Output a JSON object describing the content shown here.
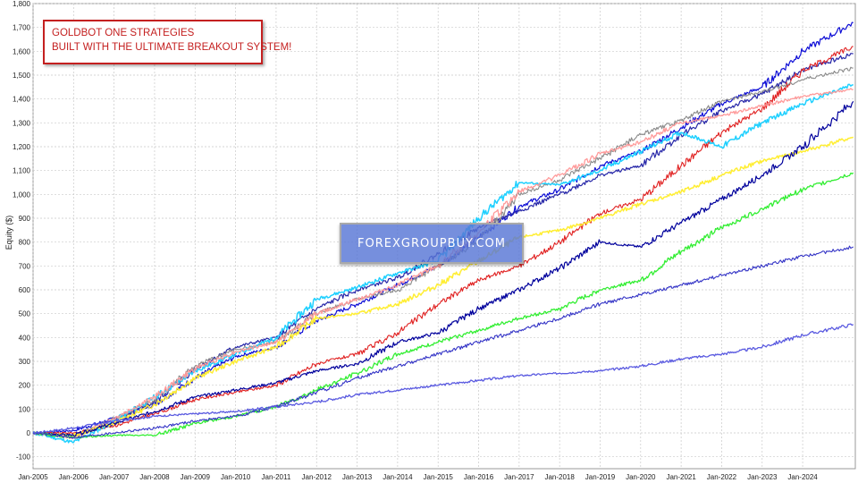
{
  "headline": {
    "line1": "GOLDBOT ONE STRATEGIES",
    "line2": "BUILT WITH THE ULTIMATE BREAKOUT SYSTEM!"
  },
  "watermark": "FOREXGROUPBUY.COM",
  "chart_data": {
    "type": "line",
    "title": "",
    "xlabel": "",
    "ylabel": "Equity ($)",
    "ylim": [
      -150,
      1800
    ],
    "grid": true,
    "yticks": [
      "-100",
      "0",
      "100",
      "200",
      "300",
      "400",
      "500",
      "600",
      "700",
      "800",
      "900",
      "1,000",
      "1,100",
      "1,200",
      "1,300",
      "1,400",
      "1,500",
      "1,600",
      "1,700",
      "1,800"
    ],
    "yticks_values": [
      -100,
      0,
      100,
      200,
      300,
      400,
      500,
      600,
      700,
      800,
      900,
      1000,
      1100,
      1200,
      1300,
      1400,
      1500,
      1600,
      1700,
      1800
    ],
    "xticks": [
      "Jan-2005",
      "Jan-2006",
      "Jan-2007",
      "Jan-2008",
      "Jan-2009",
      "Jan-2010",
      "Jan-2011",
      "Jan-2012",
      "Jan-2013",
      "Jan-2014",
      "Jan-2015",
      "Jan-2016",
      "Jan-2017",
      "Jan-2018",
      "Jan-2019",
      "Jan-2020",
      "Jan-2021",
      "Jan-2022",
      "Jan-2023",
      "Jan-2024"
    ],
    "xticks_values": [
      2005,
      2006,
      2007,
      2008,
      2009,
      2010,
      2011,
      2012,
      2013,
      2014,
      2015,
      2016,
      2017,
      2018,
      2019,
      2020,
      2021,
      2022,
      2023,
      2024
    ],
    "xlim": [
      2005,
      2025.3
    ],
    "series": [
      {
        "color": "#0d0dd6",
        "width": 1.2,
        "points": [
          [
            2005,
            0
          ],
          [
            2006,
            10
          ],
          [
            2007,
            60
          ],
          [
            2008,
            120
          ],
          [
            2009,
            230
          ],
          [
            2010,
            320
          ],
          [
            2011,
            360
          ],
          [
            2012,
            470
          ],
          [
            2013,
            540
          ],
          [
            2014,
            620
          ],
          [
            2015,
            700
          ],
          [
            2016,
            820
          ],
          [
            2017,
            950
          ],
          [
            2018,
            1020
          ],
          [
            2019,
            1120
          ],
          [
            2020,
            1180
          ],
          [
            2021,
            1280
          ],
          [
            2022,
            1380
          ],
          [
            2023,
            1450
          ],
          [
            2024,
            1600
          ],
          [
            2025.25,
            1720
          ]
        ]
      },
      {
        "color": "#2727a8",
        "width": 1.2,
        "points": [
          [
            2005,
            0
          ],
          [
            2006,
            -10
          ],
          [
            2007,
            40
          ],
          [
            2008,
            130
          ],
          [
            2009,
            270
          ],
          [
            2010,
            360
          ],
          [
            2011,
            400
          ],
          [
            2012,
            520
          ],
          [
            2013,
            600
          ],
          [
            2014,
            650
          ],
          [
            2015,
            750
          ],
          [
            2016,
            860
          ],
          [
            2017,
            930
          ],
          [
            2018,
            1000
          ],
          [
            2019,
            1080
          ],
          [
            2020,
            1120
          ],
          [
            2021,
            1250
          ],
          [
            2022,
            1350
          ],
          [
            2023,
            1420
          ],
          [
            2024,
            1520
          ],
          [
            2025.25,
            1590
          ]
        ]
      },
      {
        "color": "#e02020",
        "width": 1.1,
        "points": [
          [
            2005,
            0
          ],
          [
            2006,
            0
          ],
          [
            2007,
            30
          ],
          [
            2008,
            80
          ],
          [
            2009,
            140
          ],
          [
            2010,
            170
          ],
          [
            2011,
            200
          ],
          [
            2012,
            290
          ],
          [
            2013,
            330
          ],
          [
            2014,
            420
          ],
          [
            2015,
            540
          ],
          [
            2016,
            640
          ],
          [
            2017,
            700
          ],
          [
            2018,
            800
          ],
          [
            2019,
            920
          ],
          [
            2020,
            980
          ],
          [
            2021,
            1120
          ],
          [
            2022,
            1260
          ],
          [
            2023,
            1360
          ],
          [
            2024,
            1520
          ],
          [
            2025.25,
            1620
          ]
        ]
      },
      {
        "color": "#8a8a8a",
        "width": 1.1,
        "points": [
          [
            2005,
            0
          ],
          [
            2006,
            -20
          ],
          [
            2007,
            60
          ],
          [
            2008,
            140
          ],
          [
            2009,
            280
          ],
          [
            2010,
            350
          ],
          [
            2011,
            380
          ],
          [
            2012,
            500
          ],
          [
            2013,
            560
          ],
          [
            2014,
            600
          ],
          [
            2015,
            700
          ],
          [
            2016,
            800
          ],
          [
            2017,
            1000
          ],
          [
            2018,
            1060
          ],
          [
            2019,
            1150
          ],
          [
            2020,
            1250
          ],
          [
            2021,
            1310
          ],
          [
            2022,
            1390
          ],
          [
            2023,
            1430
          ],
          [
            2024,
            1480
          ],
          [
            2025.25,
            1530
          ]
        ]
      },
      {
        "color": "#1fd0ff",
        "width": 1.5,
        "points": [
          [
            2005,
            0
          ],
          [
            2006,
            -40
          ],
          [
            2007,
            50
          ],
          [
            2008,
            150
          ],
          [
            2009,
            260
          ],
          [
            2010,
            330
          ],
          [
            2011,
            400
          ],
          [
            2012,
            560
          ],
          [
            2013,
            610
          ],
          [
            2014,
            670
          ],
          [
            2015,
            720
          ],
          [
            2016,
            900
          ],
          [
            2017,
            1050
          ],
          [
            2018,
            1040
          ],
          [
            2019,
            1100
          ],
          [
            2020,
            1180
          ],
          [
            2021,
            1260
          ],
          [
            2022,
            1200
          ],
          [
            2023,
            1300
          ],
          [
            2024,
            1380
          ],
          [
            2025.25,
            1460
          ]
        ]
      },
      {
        "color": "#ff9a9a",
        "width": 1.3,
        "points": [
          [
            2005,
            0
          ],
          [
            2006,
            -20
          ],
          [
            2007,
            60
          ],
          [
            2008,
            150
          ],
          [
            2009,
            270
          ],
          [
            2010,
            340
          ],
          [
            2011,
            380
          ],
          [
            2012,
            500
          ],
          [
            2013,
            560
          ],
          [
            2014,
            620
          ],
          [
            2015,
            700
          ],
          [
            2016,
            840
          ],
          [
            2017,
            1010
          ],
          [
            2018,
            1080
          ],
          [
            2019,
            1170
          ],
          [
            2020,
            1220
          ],
          [
            2021,
            1300
          ],
          [
            2022,
            1330
          ],
          [
            2023,
            1370
          ],
          [
            2024,
            1410
          ],
          [
            2025.25,
            1440
          ]
        ]
      },
      {
        "color": "#ffee33",
        "width": 1.5,
        "points": [
          [
            2005,
            0
          ],
          [
            2006,
            -10
          ],
          [
            2007,
            40
          ],
          [
            2008,
            120
          ],
          [
            2009,
            230
          ],
          [
            2010,
            300
          ],
          [
            2011,
            360
          ],
          [
            2012,
            480
          ],
          [
            2013,
            500
          ],
          [
            2014,
            540
          ],
          [
            2015,
            620
          ],
          [
            2016,
            720
          ],
          [
            2017,
            820
          ],
          [
            2018,
            850
          ],
          [
            2019,
            900
          ],
          [
            2020,
            960
          ],
          [
            2021,
            1010
          ],
          [
            2022,
            1080
          ],
          [
            2023,
            1140
          ],
          [
            2024,
            1180
          ],
          [
            2025.25,
            1240
          ]
        ]
      },
      {
        "color": "#00009c",
        "width": 1.2,
        "points": [
          [
            2005,
            0
          ],
          [
            2006,
            -10
          ],
          [
            2007,
            40
          ],
          [
            2008,
            90
          ],
          [
            2009,
            150
          ],
          [
            2010,
            180
          ],
          [
            2011,
            210
          ],
          [
            2012,
            260
          ],
          [
            2013,
            290
          ],
          [
            2014,
            380
          ],
          [
            2015,
            420
          ],
          [
            2016,
            520
          ],
          [
            2017,
            600
          ],
          [
            2018,
            690
          ],
          [
            2019,
            800
          ],
          [
            2020,
            780
          ],
          [
            2021,
            880
          ],
          [
            2022,
            980
          ],
          [
            2023,
            1080
          ],
          [
            2024,
            1200
          ],
          [
            2025.25,
            1390
          ]
        ]
      },
      {
        "color": "#33ee33",
        "width": 1.3,
        "points": [
          [
            2005,
            0
          ],
          [
            2006,
            -20
          ],
          [
            2007,
            -10
          ],
          [
            2008,
            -10
          ],
          [
            2009,
            40
          ],
          [
            2010,
            70
          ],
          [
            2011,
            110
          ],
          [
            2012,
            180
          ],
          [
            2013,
            250
          ],
          [
            2014,
            330
          ],
          [
            2015,
            380
          ],
          [
            2016,
            430
          ],
          [
            2017,
            480
          ],
          [
            2018,
            520
          ],
          [
            2019,
            600
          ],
          [
            2020,
            640
          ],
          [
            2021,
            760
          ],
          [
            2022,
            860
          ],
          [
            2023,
            940
          ],
          [
            2024,
            1020
          ],
          [
            2025.25,
            1090
          ]
        ]
      },
      {
        "color": "#3434c6",
        "width": 1.1,
        "points": [
          [
            2005,
            0
          ],
          [
            2006,
            -20
          ],
          [
            2007,
            0
          ],
          [
            2008,
            20
          ],
          [
            2009,
            50
          ],
          [
            2010,
            70
          ],
          [
            2011,
            110
          ],
          [
            2012,
            170
          ],
          [
            2013,
            230
          ],
          [
            2014,
            280
          ],
          [
            2015,
            330
          ],
          [
            2016,
            380
          ],
          [
            2017,
            430
          ],
          [
            2018,
            480
          ],
          [
            2019,
            540
          ],
          [
            2020,
            580
          ],
          [
            2021,
            620
          ],
          [
            2022,
            660
          ],
          [
            2023,
            700
          ],
          [
            2024,
            740
          ],
          [
            2025.25,
            780
          ]
        ]
      },
      {
        "color": "#5a5ae0",
        "width": 1.3,
        "points": [
          [
            2005,
            0
          ],
          [
            2006,
            20
          ],
          [
            2007,
            50
          ],
          [
            2008,
            70
          ],
          [
            2009,
            80
          ],
          [
            2010,
            90
          ],
          [
            2011,
            110
          ],
          [
            2012,
            130
          ],
          [
            2013,
            160
          ],
          [
            2014,
            180
          ],
          [
            2015,
            200
          ],
          [
            2016,
            220
          ],
          [
            2017,
            240
          ],
          [
            2018,
            250
          ],
          [
            2019,
            260
          ],
          [
            2020,
            280
          ],
          [
            2021,
            310
          ],
          [
            2022,
            330
          ],
          [
            2023,
            360
          ],
          [
            2024,
            410
          ],
          [
            2025.25,
            455
          ]
        ]
      }
    ]
  }
}
